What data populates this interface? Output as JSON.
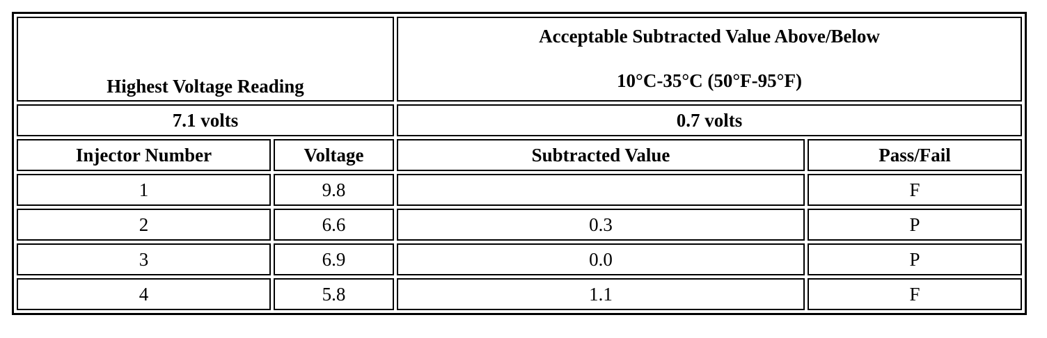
{
  "table": {
    "header": {
      "left": "Highest Voltage Reading",
      "right": [
        "Acceptable Subtracted Value Above/Below",
        "10°C-35°C (50°F-95°F)"
      ]
    },
    "limits": {
      "left": "7.1 volts",
      "right": "0.7 volts"
    },
    "columns": [
      "Injector Number",
      "Voltage",
      "Subtracted Value",
      "Pass/Fail"
    ],
    "rows": [
      [
        "1",
        "9.8",
        null,
        "F"
      ],
      [
        "2",
        "6.6",
        "0.3",
        "P"
      ],
      [
        "3",
        "6.9",
        "0.0",
        "P"
      ],
      [
        "4",
        "5.8",
        "1.1",
        "F"
      ]
    ]
  }
}
